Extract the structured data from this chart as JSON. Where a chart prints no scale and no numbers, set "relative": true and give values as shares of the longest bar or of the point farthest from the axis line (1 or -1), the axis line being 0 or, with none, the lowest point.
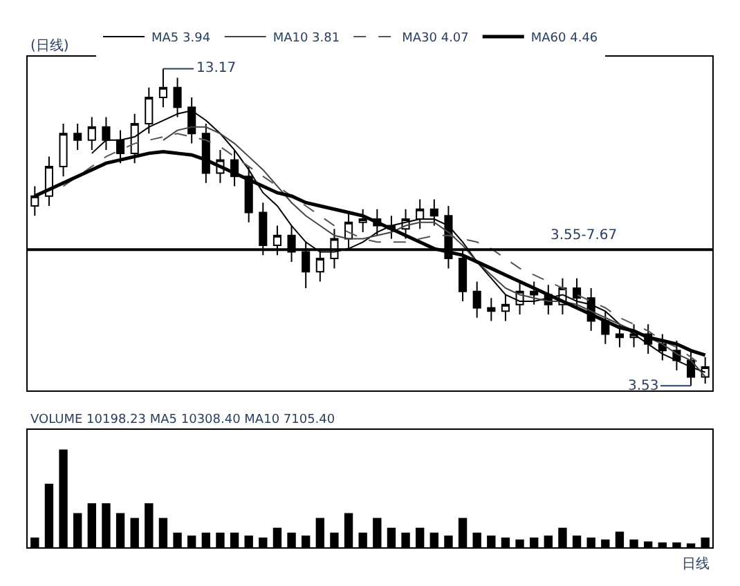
{
  "chart_data": [
    {
      "type": "candlestick",
      "title": "(日线)",
      "categories": [
        null,
        null,
        null,
        null,
        null,
        null,
        null,
        null,
        null,
        null,
        null,
        null,
        null,
        null,
        null,
        null,
        null,
        null,
        null,
        null,
        null,
        null,
        null,
        null,
        null,
        null,
        null,
        null,
        null,
        null,
        null,
        null,
        null,
        null,
        null,
        null,
        null,
        null,
        null,
        null,
        null,
        null,
        null,
        null,
        null,
        null,
        null,
        null
      ],
      "ohlc": [
        [
          9.0,
          9.6,
          8.7,
          9.3
        ],
        [
          9.3,
          10.5,
          9.0,
          10.2
        ],
        [
          10.2,
          11.5,
          9.9,
          11.2
        ],
        [
          11.2,
          11.5,
          10.7,
          11.0
        ],
        [
          11.0,
          11.7,
          10.7,
          11.4
        ],
        [
          11.4,
          11.7,
          10.7,
          11.0
        ],
        [
          11.0,
          11.3,
          10.3,
          10.6
        ],
        [
          10.6,
          11.8,
          10.3,
          11.5
        ],
        [
          11.5,
          12.6,
          11.2,
          12.3
        ],
        [
          12.3,
          13.17,
          12.0,
          12.6
        ],
        [
          12.6,
          12.9,
          11.7,
          12.0
        ],
        [
          12.0,
          12.3,
          10.9,
          11.2
        ],
        [
          11.2,
          11.5,
          9.7,
          10.0
        ],
        [
          10.0,
          10.7,
          9.7,
          10.4
        ],
        [
          10.4,
          10.7,
          9.6,
          9.9
        ],
        [
          9.9,
          10.2,
          8.5,
          8.8
        ],
        [
          8.8,
          9.1,
          7.5,
          7.8
        ],
        [
          7.8,
          8.4,
          7.5,
          8.1
        ],
        [
          8.1,
          8.4,
          7.3,
          7.6
        ],
        [
          7.6,
          7.9,
          6.5,
          7.0
        ],
        [
          7.0,
          7.7,
          6.7,
          7.4
        ],
        [
          7.4,
          8.3,
          7.1,
          8.0
        ],
        [
          8.0,
          8.8,
          7.7,
          8.5
        ],
        [
          8.5,
          8.9,
          8.2,
          8.6
        ],
        [
          8.6,
          8.9,
          8.1,
          8.4
        ],
        [
          8.4,
          8.7,
          8.0,
          8.3
        ],
        [
          8.3,
          8.9,
          8.0,
          8.6
        ],
        [
          8.6,
          9.2,
          8.3,
          8.9
        ],
        [
          8.9,
          9.2,
          8.4,
          8.7
        ],
        [
          8.7,
          9.0,
          7.1,
          7.4
        ],
        [
          7.4,
          7.7,
          6.1,
          6.4
        ],
        [
          6.4,
          6.7,
          5.6,
          5.9
        ],
        [
          5.9,
          6.2,
          5.5,
          5.8
        ],
        [
          5.8,
          6.3,
          5.5,
          6.0
        ],
        [
          6.0,
          6.7,
          5.7,
          6.4
        ],
        [
          6.4,
          6.7,
          6.0,
          6.3
        ],
        [
          6.3,
          6.6,
          5.7,
          6.0
        ],
        [
          6.0,
          6.8,
          5.7,
          6.5
        ],
        [
          6.5,
          6.8,
          5.9,
          6.2
        ],
        [
          6.2,
          6.5,
          5.2,
          5.5
        ],
        [
          5.5,
          5.8,
          4.8,
          5.1
        ],
        [
          5.1,
          5.4,
          4.7,
          5.0
        ],
        [
          5.0,
          5.4,
          4.7,
          5.1
        ],
        [
          5.1,
          5.4,
          4.5,
          4.8
        ],
        [
          4.8,
          5.1,
          4.3,
          4.6
        ],
        [
          4.6,
          4.9,
          4.0,
          4.3
        ],
        [
          4.3,
          4.6,
          3.53,
          3.8
        ],
        [
          3.8,
          4.4,
          3.6,
          4.1
        ]
      ],
      "series": [
        {
          "name": "MA5 3.94",
          "type": "line",
          "color": "#000000",
          "values": [
            null,
            null,
            null,
            null,
            10.6,
            11.0,
            11.0,
            11.1,
            11.4,
            11.6,
            11.8,
            11.9,
            11.6,
            11.2,
            10.7,
            10.1,
            9.4,
            9.0,
            8.4,
            7.9,
            7.6,
            7.6,
            7.7,
            7.9,
            8.2,
            8.4,
            8.5,
            8.6,
            8.6,
            8.4,
            7.9,
            7.3,
            6.8,
            6.3,
            6.1,
            6.1,
            6.2,
            6.3,
            6.1,
            6.0,
            5.8,
            5.4,
            5.1,
            4.8,
            4.5,
            4.3,
            4.1,
            3.94
          ]
        },
        {
          "name": "MA10 3.81",
          "type": "line",
          "color": "#444444",
          "values": [
            null,
            null,
            null,
            null,
            null,
            null,
            null,
            null,
            null,
            11.0,
            11.3,
            11.4,
            11.4,
            11.2,
            10.9,
            10.5,
            10.1,
            9.6,
            9.1,
            8.7,
            8.4,
            8.1,
            8.0,
            8.0,
            8.1,
            8.2,
            8.4,
            8.5,
            8.5,
            8.2,
            7.8,
            7.3,
            6.9,
            6.5,
            6.3,
            6.2,
            6.1,
            6.1,
            6.0,
            5.8,
            5.6,
            5.4,
            5.2,
            5.0,
            4.8,
            4.5,
            4.3,
            3.81
          ]
        },
        {
          "name": "MA30 4.07",
          "type": "line",
          "line_style": "dashed",
          "color": "#555555",
          "values": [
            null,
            null,
            9.6,
            9.9,
            10.2,
            10.5,
            10.7,
            10.9,
            11.0,
            11.1,
            11.2,
            11.1,
            11.0,
            10.8,
            10.5,
            10.2,
            9.9,
            9.6,
            9.3,
            9.0,
            8.7,
            8.4,
            8.2,
            8.0,
            7.9,
            7.9,
            7.9,
            8.0,
            8.1,
            8.1,
            8.0,
            7.9,
            7.7,
            7.4,
            7.1,
            6.9,
            6.7,
            6.5,
            6.3,
            6.1,
            5.9,
            5.6,
            5.4,
            5.2,
            4.9,
            4.7,
            4.4,
            4.07
          ]
        },
        {
          "name": "MA60 4.46",
          "type": "line",
          "color": "#000000",
          "values": [
            9.3,
            9.5,
            9.7,
            9.9,
            10.1,
            10.3,
            10.4,
            10.5,
            10.6,
            10.65,
            10.6,
            10.55,
            10.4,
            10.2,
            10.0,
            9.8,
            9.6,
            9.4,
            9.3,
            9.1,
            9.0,
            8.9,
            8.8,
            8.7,
            8.5,
            8.3,
            8.1,
            7.9,
            7.7,
            7.6,
            7.5,
            7.3,
            7.1,
            6.9,
            6.7,
            6.5,
            6.3,
            6.1,
            5.9,
            5.7,
            5.5,
            5.3,
            5.2,
            5.0,
            4.9,
            4.8,
            4.6,
            4.46
          ]
        }
      ],
      "ylim": [
        3.38,
        13.54
      ],
      "tick_labels": false,
      "legend": "top left",
      "ref_lines": [
        {
          "axis": "y",
          "value": 7.67,
          "color": "#000000"
        }
      ],
      "annotations": [
        "13.17",
        "3.53",
        "日线",
        "3.55-7.67"
      ]
    },
    {
      "type": "bar",
      "title": "VOLUME 10198.23 MA5 10308.40 MA10 7105.40",
      "relative": true,
      "color": "#000000",
      "tick_labels": false,
      "categories": [
        null,
        null,
        null,
        null,
        null,
        null,
        null,
        null,
        null,
        null,
        null,
        null,
        null,
        null,
        null,
        null,
        null,
        null,
        null,
        null,
        null,
        null,
        null,
        null,
        null,
        null,
        null,
        null,
        null,
        null,
        null,
        null,
        null,
        null,
        null,
        null,
        null,
        null,
        null,
        null,
        null,
        null,
        null,
        null,
        null,
        null,
        null,
        null
      ],
      "values": [
        0.1,
        0.65,
        1.0,
        0.35,
        0.45,
        0.45,
        0.35,
        0.3,
        0.45,
        0.3,
        0.15,
        0.12,
        0.15,
        0.15,
        0.15,
        0.12,
        0.1,
        0.2,
        0.15,
        0.12,
        0.3,
        0.15,
        0.35,
        0.15,
        0.3,
        0.2,
        0.15,
        0.2,
        0.15,
        0.12,
        0.3,
        0.15,
        0.12,
        0.1,
        0.08,
        0.1,
        0.12,
        0.2,
        0.12,
        0.1,
        0.08,
        0.16,
        0.08,
        0.06,
        0.05,
        0.05,
        0.04,
        0.1
      ]
    }
  ]
}
